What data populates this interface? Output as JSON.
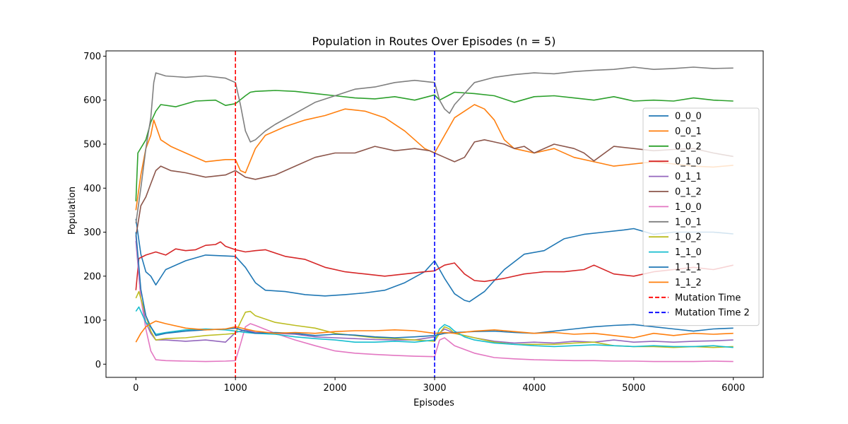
{
  "chart_data": {
    "type": "line",
    "title": "Population in Routes Over Episodes (n = 5)",
    "xlabel": "Episodes",
    "ylabel": "Population",
    "xlim": [
      -300,
      6300
    ],
    "ylim": [
      -30,
      712
    ],
    "xticks": [
      0,
      1000,
      2000,
      3000,
      4000,
      5000,
      6000
    ],
    "yticks": [
      0,
      100,
      200,
      300,
      400,
      500,
      600,
      700
    ],
    "grid": false,
    "legend_position": "center-right",
    "series": [
      {
        "name": "0_0_0",
        "color": "#1f77b4",
        "x": [
          0,
          50,
          100,
          150,
          200,
          300,
          500,
          700,
          900,
          1000,
          1100,
          1200,
          1300,
          1500,
          1700,
          1900,
          2100,
          2300,
          2500,
          2700,
          2900,
          3000,
          3100,
          3200,
          3300,
          3350,
          3500,
          3700,
          3900,
          4100,
          4300,
          4500,
          4700,
          4900,
          5000,
          5200,
          5400,
          5600,
          5800,
          6000
        ],
        "y": [
          330,
          250,
          210,
          200,
          180,
          215,
          235,
          248,
          246,
          245,
          220,
          185,
          168,
          165,
          158,
          155,
          158,
          162,
          168,
          185,
          210,
          235,
          195,
          160,
          145,
          142,
          165,
          215,
          250,
          258,
          285,
          295,
          300,
          305,
          308,
          295,
          300,
          300,
          300,
          296
        ]
      },
      {
        "name": "0_0_1",
        "color": "#ff7f0e",
        "x": [
          0,
          50,
          100,
          150,
          180,
          250,
          350,
          500,
          700,
          900,
          1000,
          1050,
          1100,
          1200,
          1300,
          1500,
          1700,
          1900,
          2100,
          2300,
          2500,
          2700,
          2900,
          3000,
          3100,
          3200,
          3300,
          3400,
          3500,
          3600,
          3700,
          3800,
          4000,
          4200,
          4400,
          4600,
          4800,
          5000,
          5200,
          5400,
          5600,
          5800,
          6000
        ],
        "y": [
          350,
          430,
          490,
          520,
          555,
          510,
          495,
          480,
          460,
          465,
          465,
          440,
          435,
          490,
          520,
          540,
          555,
          565,
          580,
          575,
          560,
          530,
          490,
          480,
          520,
          560,
          575,
          590,
          580,
          555,
          510,
          490,
          480,
          490,
          470,
          460,
          450,
          455,
          460,
          455,
          450,
          448,
          452
        ]
      },
      {
        "name": "0_0_2",
        "color": "#2ca02c",
        "x": [
          0,
          20,
          100,
          150,
          200,
          250,
          400,
          600,
          800,
          900,
          1000,
          1100,
          1150,
          1200,
          1400,
          1600,
          1800,
          2000,
          2200,
          2400,
          2600,
          2800,
          3000,
          3050,
          3200,
          3400,
          3600,
          3800,
          4000,
          4200,
          4400,
          4600,
          4800,
          5000,
          5200,
          5400,
          5600,
          5800,
          6000
        ],
        "y": [
          370,
          480,
          510,
          550,
          575,
          590,
          585,
          598,
          600,
          588,
          592,
          610,
          618,
          620,
          622,
          620,
          615,
          610,
          605,
          603,
          608,
          600,
          612,
          600,
          618,
          615,
          610,
          595,
          608,
          610,
          605,
          600,
          608,
          598,
          600,
          598,
          605,
          600,
          598
        ]
      },
      {
        "name": "0_1_0",
        "color": "#d62728",
        "x": [
          0,
          30,
          100,
          200,
          300,
          400,
          500,
          600,
          700,
          800,
          850,
          900,
          1000,
          1100,
          1200,
          1300,
          1500,
          1700,
          1900,
          2100,
          2300,
          2500,
          2700,
          2900,
          3000,
          3100,
          3200,
          3300,
          3400,
          3500,
          3700,
          3900,
          4100,
          4300,
          4500,
          4600,
          4800,
          5000,
          5200,
          5400,
          5600,
          5800,
          6000
        ],
        "y": [
          168,
          240,
          248,
          255,
          248,
          262,
          258,
          260,
          270,
          272,
          278,
          268,
          260,
          255,
          258,
          260,
          245,
          238,
          220,
          210,
          205,
          200,
          205,
          210,
          212,
          225,
          230,
          205,
          190,
          188,
          195,
          205,
          210,
          210,
          215,
          225,
          205,
          200,
          210,
          215,
          220,
          215,
          225
        ]
      },
      {
        "name": "0_1_1",
        "color": "#9467bd",
        "x": [
          0,
          50,
          100,
          150,
          200,
          300,
          500,
          700,
          900,
          1000,
          1100,
          1200,
          1400,
          1600,
          1800,
          2000,
          2200,
          2400,
          2600,
          2800,
          3000,
          3100,
          3200,
          3400,
          3600,
          3800,
          4000,
          4200,
          4400,
          4600,
          4800,
          5000,
          5200,
          5400,
          5600,
          5800,
          6000
        ],
        "y": [
          280,
          150,
          95,
          70,
          55,
          55,
          52,
          55,
          50,
          72,
          78,
          72,
          70,
          68,
          62,
          60,
          58,
          56,
          55,
          55,
          62,
          80,
          70,
          60,
          52,
          48,
          50,
          48,
          52,
          50,
          55,
          50,
          52,
          50,
          52,
          53,
          55
        ]
      },
      {
        "name": "0_1_2",
        "color": "#8c564b",
        "x": [
          0,
          50,
          100,
          150,
          200,
          250,
          350,
          500,
          700,
          900,
          1000,
          1100,
          1200,
          1400,
          1600,
          1800,
          2000,
          2200,
          2400,
          2600,
          2800,
          2950,
          3000,
          3100,
          3200,
          3300,
          3400,
          3500,
          3600,
          3700,
          3800,
          3900,
          4000,
          4200,
          4400,
          4500,
          4600,
          4800,
          5000,
          5200,
          5400,
          5600,
          5800,
          6000
        ],
        "y": [
          290,
          360,
          380,
          410,
          440,
          450,
          440,
          435,
          425,
          430,
          440,
          425,
          420,
          430,
          450,
          470,
          480,
          480,
          495,
          485,
          490,
          485,
          480,
          470,
          460,
          470,
          505,
          510,
          505,
          500,
          490,
          495,
          480,
          500,
          490,
          480,
          462,
          495,
          490,
          485,
          488,
          490,
          480,
          472
        ]
      },
      {
        "name": "1_0_0",
        "color": "#e377c2",
        "x": [
          0,
          50,
          100,
          150,
          200,
          300,
          500,
          700,
          900,
          1000,
          1050,
          1100,
          1150,
          1200,
          1400,
          1600,
          1800,
          2000,
          2200,
          2400,
          2600,
          2800,
          3000,
          3050,
          3100,
          3200,
          3400,
          3600,
          3800,
          4000,
          4200,
          4400,
          4600,
          4800,
          5000,
          5200,
          5400,
          5600,
          5800,
          6000
        ],
        "y": [
          290,
          150,
          80,
          30,
          10,
          8,
          7,
          6,
          7,
          8,
          45,
          85,
          92,
          88,
          70,
          55,
          42,
          30,
          25,
          22,
          20,
          18,
          17,
          55,
          60,
          42,
          25,
          15,
          12,
          10,
          9,
          8,
          8,
          7,
          7,
          6,
          6,
          6,
          7,
          6
        ]
      },
      {
        "name": "1_0_1",
        "color": "#7f7f7f",
        "x": [
          0,
          50,
          100,
          150,
          180,
          200,
          300,
          500,
          700,
          900,
          1000,
          1050,
          1100,
          1150,
          1200,
          1300,
          1400,
          1600,
          1800,
          2000,
          2200,
          2400,
          2600,
          2800,
          3000,
          3050,
          3100,
          3150,
          3200,
          3300,
          3400,
          3600,
          3800,
          4000,
          4200,
          4400,
          4600,
          4800,
          5000,
          5200,
          5400,
          5600,
          5800,
          6000
        ],
        "y": [
          320,
          400,
          490,
          560,
          640,
          662,
          655,
          652,
          655,
          650,
          640,
          590,
          530,
          505,
          510,
          530,
          545,
          570,
          595,
          610,
          625,
          630,
          640,
          645,
          640,
          600,
          580,
          570,
          590,
          615,
          640,
          652,
          658,
          662,
          660,
          665,
          668,
          670,
          675,
          670,
          672,
          675,
          672,
          673
        ]
      },
      {
        "name": "1_0_2",
        "color": "#bcbd22",
        "x": [
          0,
          30,
          100,
          150,
          200,
          300,
          500,
          700,
          900,
          1000,
          1050,
          1100,
          1150,
          1200,
          1400,
          1600,
          1800,
          2000,
          2200,
          2400,
          2600,
          2800,
          3000,
          3050,
          3100,
          3150,
          3200,
          3400,
          3600,
          3800,
          4000,
          4200,
          4400,
          4600,
          4800,
          5000,
          5200,
          5400,
          5600,
          5800,
          6000
        ],
        "y": [
          150,
          165,
          110,
          75,
          55,
          58,
          60,
          65,
          68,
          70,
          95,
          118,
          120,
          110,
          95,
          88,
          82,
          70,
          65,
          60,
          58,
          55,
          52,
          70,
          85,
          80,
          70,
          60,
          50,
          45,
          45,
          45,
          48,
          50,
          42,
          40,
          40,
          38,
          40,
          38,
          40
        ]
      },
      {
        "name": "1_1_0",
        "color": "#17becf",
        "x": [
          0,
          30,
          100,
          150,
          200,
          300,
          500,
          700,
          900,
          1000,
          1100,
          1200,
          1400,
          1600,
          1800,
          2000,
          2200,
          2400,
          2600,
          2800,
          3000,
          3050,
          3100,
          3150,
          3200,
          3300,
          3400,
          3600,
          3800,
          4000,
          4200,
          4400,
          4600,
          4800,
          5000,
          5200,
          5400,
          5600,
          5800,
          6000
        ],
        "y": [
          120,
          130,
          95,
          85,
          68,
          72,
          78,
          80,
          78,
          75,
          72,
          70,
          68,
          62,
          58,
          55,
          50,
          50,
          52,
          50,
          55,
          80,
          90,
          85,
          75,
          62,
          55,
          48,
          45,
          42,
          40,
          42,
          44,
          42,
          40,
          42,
          40,
          40,
          42,
          38
        ]
      },
      {
        "name": "1_1_1",
        "color": "#1f77b4",
        "x": [
          0,
          50,
          100,
          150,
          200,
          300,
          500,
          700,
          900,
          1000,
          1100,
          1200,
          1400,
          1600,
          1800,
          2000,
          2200,
          2400,
          2600,
          2800,
          3000,
          3100,
          3200,
          3400,
          3600,
          3800,
          4000,
          4200,
          4400,
          4600,
          4800,
          5000,
          5200,
          5400,
          5600,
          5800,
          6000
        ],
        "y": [
          300,
          170,
          110,
          85,
          65,
          70,
          75,
          78,
          80,
          82,
          75,
          70,
          72,
          70,
          65,
          68,
          66,
          62,
          60,
          62,
          65,
          70,
          72,
          74,
          75,
          72,
          70,
          75,
          80,
          85,
          88,
          90,
          85,
          80,
          75,
          80,
          82
        ]
      },
      {
        "name": "1_1_2",
        "color": "#ff7f0e",
        "x": [
          0,
          50,
          100,
          150,
          200,
          300,
          500,
          700,
          900,
          1000,
          1100,
          1200,
          1400,
          1600,
          1800,
          2000,
          2200,
          2400,
          2600,
          2800,
          3000,
          3100,
          3200,
          3400,
          3600,
          3800,
          4000,
          4200,
          4400,
          4600,
          4800,
          5000,
          5200,
          5400,
          5600,
          5800,
          6000
        ],
        "y": [
          50,
          70,
          85,
          92,
          98,
          92,
          82,
          78,
          80,
          85,
          80,
          75,
          70,
          72,
          70,
          74,
          76,
          76,
          78,
          76,
          70,
          72,
          70,
          75,
          78,
          74,
          70,
          72,
          68,
          70,
          65,
          60,
          70,
          65,
          70,
          68,
          70
        ]
      }
    ],
    "vlines": [
      {
        "name": "Mutation Time",
        "x": 1000,
        "color": "#ff0000"
      },
      {
        "name": "Mutation Time 2",
        "x": 3000,
        "color": "#0000ff"
      }
    ]
  }
}
